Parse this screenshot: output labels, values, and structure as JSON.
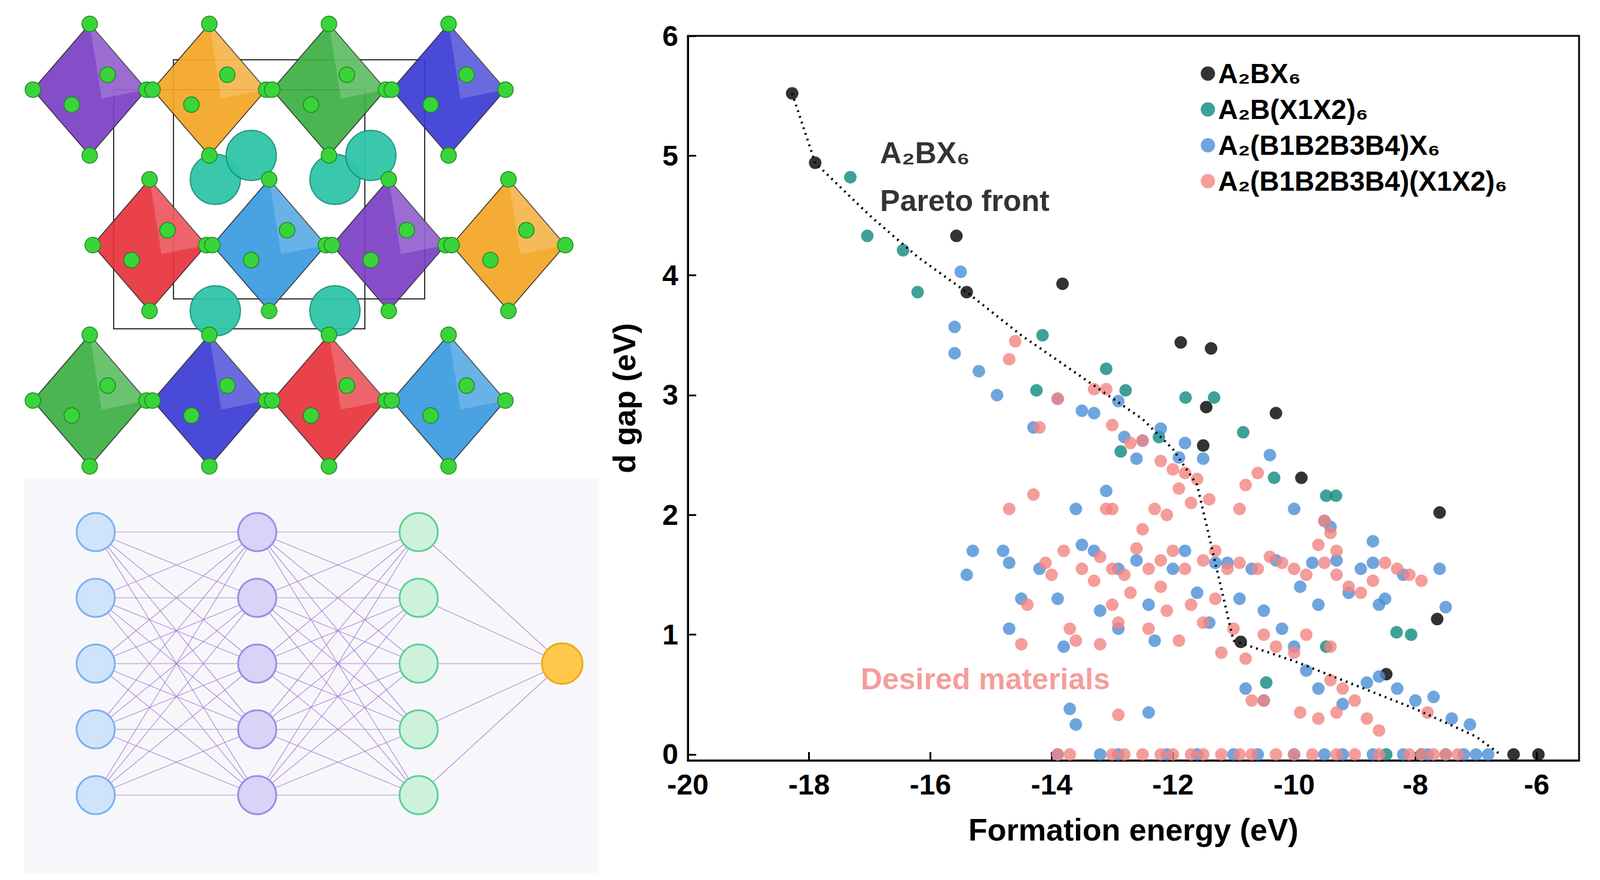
{
  "chart_data": {
    "type": "scatter",
    "x_label": "Formation energy (eV)",
    "y_label": "d gap (eV)",
    "xlim": [
      -20,
      -5.3
    ],
    "xticks": [
      -20,
      -18,
      -16,
      -14,
      -12,
      -10,
      -8,
      -6
    ],
    "ylim": [
      -0.05,
      6
    ],
    "yticks": [
      0,
      1,
      2,
      3,
      4,
      5,
      6
    ],
    "grid": false,
    "legend": "top-right",
    "marker": "circle",
    "series": [
      {
        "name": "A₂BX₆",
        "color": "#000000",
        "x": [
          -18.28,
          -17.9,
          -15.57,
          -15.4,
          -13.82,
          -11.87,
          -11.37,
          -11.45,
          -11.5,
          -10.3,
          -9.88,
          -7.6,
          -7.64,
          -10.88,
          -8.48,
          -6.38,
          -5.97
        ],
        "values": [
          5.52,
          4.94,
          4.33,
          3.86,
          3.93,
          3.44,
          3.39,
          2.9,
          2.58,
          2.85,
          2.31,
          2.02,
          1.13,
          0.94,
          0.67,
          0,
          0
        ]
      },
      {
        "name": "A₂B(X1X2)₆",
        "color": "#0e8a7e",
        "x": [
          -17.32,
          -17.04,
          -16.45,
          -16.21,
          -14.15,
          -14.25,
          -13.1,
          -12.78,
          -12.23,
          -12.86,
          -11.79,
          -11.32,
          -10.84,
          -10.33,
          -9.47,
          -9.31,
          -8.31,
          -9.47,
          -10.46,
          -8.07,
          -8.48,
          -7.9
        ],
        "values": [
          4.82,
          4.33,
          4.21,
          3.86,
          3.5,
          3.04,
          3.22,
          3.04,
          2.65,
          2.53,
          2.98,
          2.98,
          2.69,
          2.31,
          2.16,
          2.16,
          1.02,
          0.9,
          0.6,
          1.0,
          0,
          0
        ]
      },
      {
        "name": "A₂(B1B2B3B4)X₆",
        "color": "#4b8fd6",
        "x": [
          -15.5,
          -15.6,
          -15.6,
          -15.2,
          -14.9,
          -14.3,
          -13.9,
          -13.5,
          -13.3,
          -12.9,
          -12.8,
          -12.5,
          -12.2,
          -11.9,
          -11.5,
          -12.6,
          -11.8,
          -10.4,
          -10.0,
          -9.5,
          -9.4,
          -8.7,
          -7.6,
          -7.5,
          -8.2,
          -8.5,
          -8.6,
          -15.3,
          -15.4,
          -14.8,
          -14.7,
          -14.5,
          -14.7,
          -13.9,
          -13.5,
          -13.3,
          -13.6,
          -13.1,
          -13.2,
          -12.9,
          -12.6,
          -12.4,
          -12.3,
          -12.0,
          -11.8,
          -11.6,
          -11.4,
          -11.1,
          -10.9,
          -10.7,
          -10.5,
          -10.3,
          -10.2,
          -9.9,
          -9.7,
          -9.6,
          -9.3,
          -9.1,
          -8.9,
          -8.7,
          -14.2,
          -13.8,
          -11.3,
          -12.9,
          -13.7,
          -13.6,
          -12.4,
          -10.8,
          -10.5,
          -9.6,
          -9.2,
          -8.8,
          -8.6,
          -8.3,
          -8.0,
          -7.7,
          -7.4,
          -7.1,
          -10.0,
          -9.8,
          -13.9,
          -13.2,
          -12.9,
          -12.1,
          -11.6,
          -11.0,
          -10.6,
          -10.0,
          -9.5,
          -9.2,
          -8.7,
          -8.2,
          -7.8,
          -7.5,
          -7.2,
          -7.0,
          -6.8
        ],
        "values": [
          4.03,
          3.57,
          3.35,
          3.2,
          3.0,
          2.73,
          2.97,
          2.87,
          2.85,
          2.95,
          2.65,
          2.62,
          2.72,
          2.48,
          2.47,
          2.47,
          2.6,
          2.5,
          2.05,
          1.95,
          1.9,
          1.78,
          1.55,
          1.23,
          1.5,
          1.3,
          1.25,
          1.7,
          1.5,
          1.7,
          1.6,
          1.3,
          1.05,
          1.3,
          1.75,
          1.7,
          2.05,
          2.2,
          1.2,
          1.05,
          1.62,
          1.25,
          0.95,
          1.55,
          1.7,
          1.35,
          1.1,
          1.6,
          1.3,
          1.55,
          1.2,
          1.62,
          1.05,
          1.4,
          1.6,
          1.25,
          1.62,
          1.35,
          1.55,
          1.6,
          1.55,
          0.9,
          1.6,
          1.55,
          0.38,
          0.25,
          0.35,
          0.55,
          0.45,
          0.55,
          0.42,
          0.6,
          0.65,
          0.55,
          0.45,
          0.48,
          0.3,
          0.25,
          0.9,
          0.7,
          0,
          0,
          0,
          0,
          0,
          0,
          0,
          0,
          0,
          0,
          0,
          0,
          0,
          0,
          0,
          0,
          0
        ]
      },
      {
        "name": "A₂(B1B2B3B4)(X1X2)₆",
        "color": "#f28482",
        "x": [
          -14.6,
          -14.7,
          -13.9,
          -14.2,
          -13.3,
          -13.1,
          -13.0,
          -12.7,
          -12.5,
          -12.2,
          -12.0,
          -11.8,
          -11.9,
          -11.6,
          -11.7,
          -11.4,
          -10.8,
          -10.6,
          -10.9,
          -12.1,
          -12.3,
          -12.5,
          -13.0,
          -13.1,
          -14.7,
          -14.3,
          -9.5,
          -9.4,
          -9.3,
          -9.6,
          -14.1,
          -14.0,
          -13.8,
          -13.5,
          -13.3,
          -13.2,
          -13.0,
          -12.8,
          -12.6,
          -12.4,
          -12.2,
          -12.0,
          -11.8,
          -11.5,
          -11.3,
          -11.1,
          -10.9,
          -10.6,
          -10.4,
          -10.2,
          -10.0,
          -9.8,
          -9.5,
          -9.3,
          -9.1,
          -8.9,
          -8.7,
          -8.5,
          -8.3,
          -8.1,
          -7.9,
          -14.4,
          -14.5,
          -13.7,
          -13.6,
          -13.0,
          -12.7,
          -12.4,
          -12.1,
          -11.9,
          -11.7,
          -11.5,
          -11.2,
          -11.0,
          -10.8,
          -10.5,
          -10.3,
          -10.0,
          -9.8,
          -9.4,
          -13.2,
          -12.9,
          -12.2,
          -11.3,
          -10.7,
          -10.5,
          -9.9,
          -9.6,
          -9.3,
          -9.0,
          -8.8,
          -8.6,
          -9.2,
          -7.8,
          -9.4,
          -12.9,
          -13.9,
          -13.7,
          -13.0,
          -12.8,
          -12.5,
          -12.2,
          -12.0,
          -11.7,
          -11.5,
          -11.2,
          -10.9,
          -10.7,
          -10.3,
          -10.0,
          -9.7,
          -9.3,
          -9.0,
          -8.6,
          -8.1,
          -7.9,
          -7.7,
          -7.5,
          -7.3
        ],
        "values": [
          3.45,
          3.3,
          2.97,
          2.73,
          3.05,
          3.05,
          2.75,
          2.6,
          2.62,
          2.45,
          2.38,
          2.35,
          2.22,
          2.3,
          2.1,
          2.13,
          2.25,
          2.35,
          2.05,
          2.0,
          2.05,
          1.88,
          2.05,
          2.05,
          2.05,
          2.17,
          1.95,
          1.85,
          1.7,
          1.75,
          1.6,
          1.5,
          1.7,
          1.55,
          1.45,
          1.65,
          1.55,
          1.5,
          1.72,
          1.55,
          1.62,
          1.7,
          1.55,
          1.62,
          1.7,
          1.55,
          1.6,
          1.55,
          1.65,
          1.6,
          1.55,
          1.5,
          1.6,
          1.5,
          1.4,
          1.35,
          1.45,
          1.6,
          1.55,
          1.5,
          1.45,
          1.25,
          0.92,
          1.05,
          0.95,
          1.25,
          1.35,
          1.05,
          1.2,
          0.95,
          1.25,
          1.1,
          0.85,
          1.05,
          0.8,
          1.0,
          0.9,
          0.85,
          1.0,
          0.9,
          0.92,
          1.1,
          1.4,
          1.3,
          0.45,
          0.45,
          0.35,
          0.3,
          0.35,
          0.45,
          0.3,
          0.2,
          0.55,
          0.35,
          0.62,
          0.33,
          0,
          0,
          0,
          0,
          0,
          0,
          0,
          0,
          0,
          0,
          0,
          0,
          0,
          0,
          0,
          0,
          0,
          0,
          0,
          0,
          0,
          0,
          0
        ]
      },
      {
        "type": "line",
        "line_style": "dotted",
        "color": "#000000",
        "x": [
          -18.28,
          -17.9,
          -17.0,
          -16.2,
          -15.4,
          -14.5,
          -13.5,
          -12.5,
          -12.0,
          -11.6,
          -11.3,
          -11.0,
          -10.0,
          -9.0,
          -8.0,
          -7.0,
          -6.6
        ],
        "values": [
          5.52,
          4.94,
          4.5,
          4.15,
          3.86,
          3.5,
          3.15,
          2.8,
          2.55,
          2.25,
          1.6,
          0.95,
          0.78,
          0.58,
          0.38,
          0.15,
          0
        ]
      }
    ],
    "annotations": [
      {
        "text": "A₂BX₆",
        "x": -16.83,
        "y": 5.02,
        "color": "#000000"
      },
      {
        "text": "Pareto front",
        "x": -16.83,
        "y": 4.62,
        "color": "#000000"
      },
      {
        "text": "Desired materials",
        "x": -17.15,
        "y": 0.63,
        "color": "#f28482"
      }
    ]
  }
}
